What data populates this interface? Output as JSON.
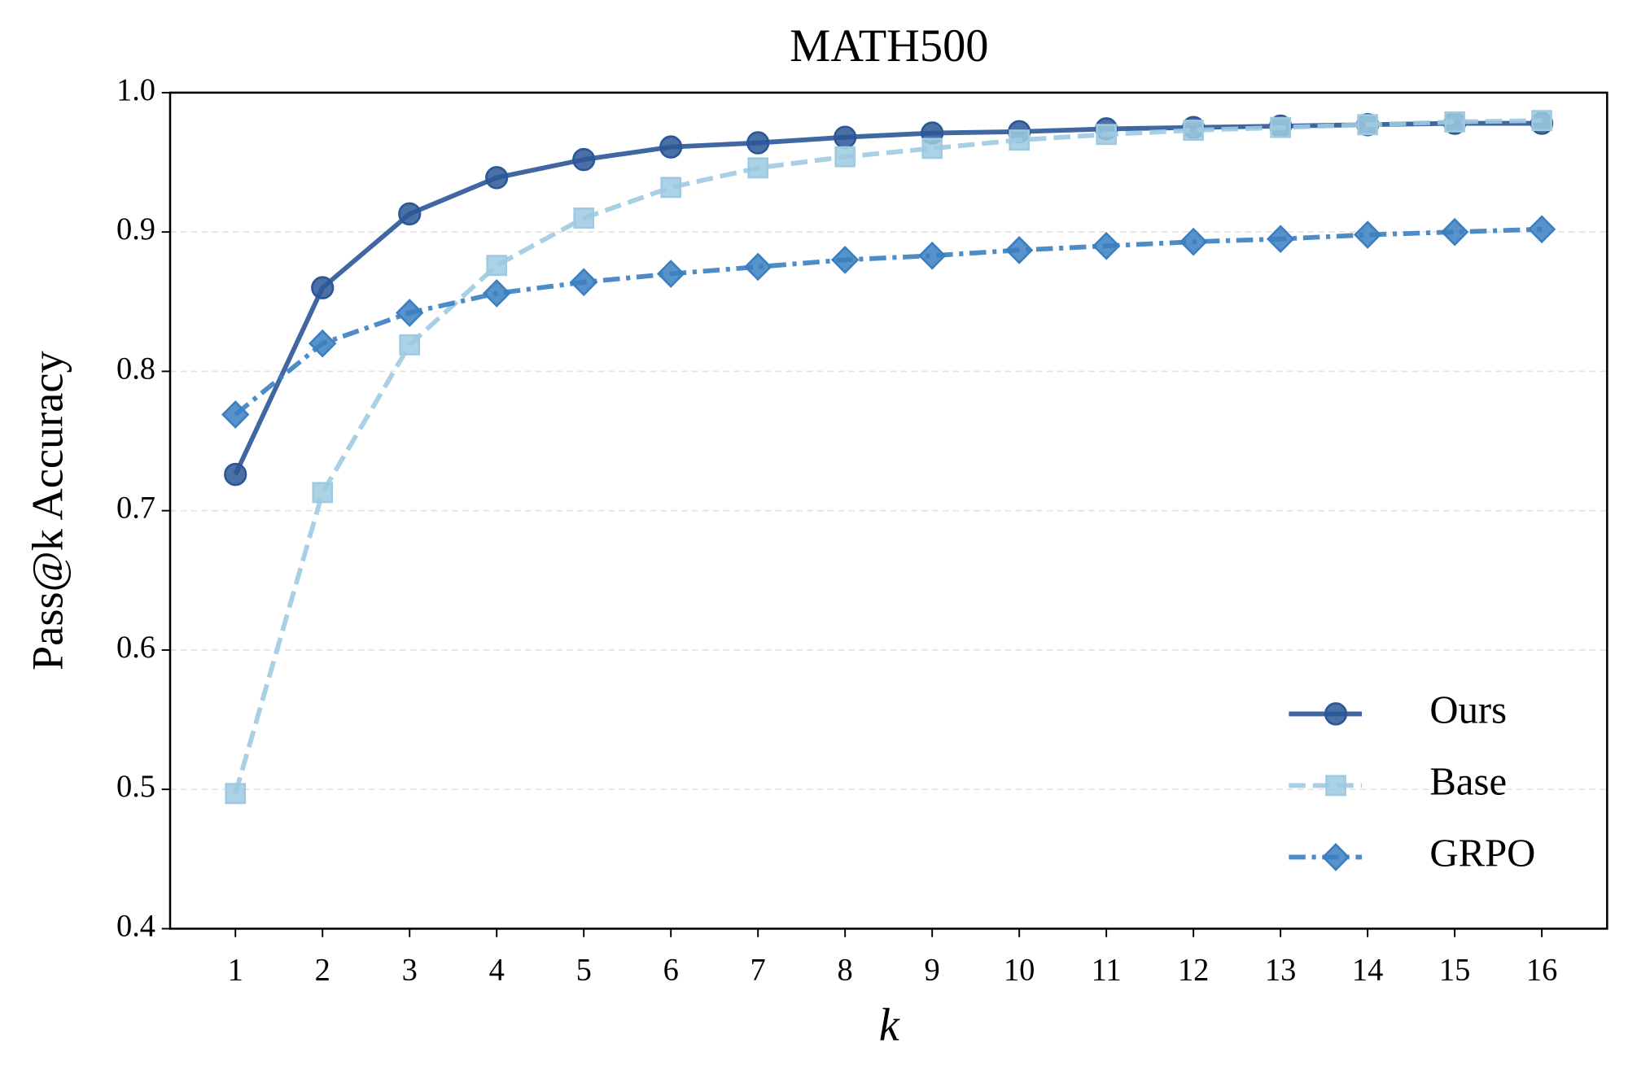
{
  "chart_data": {
    "type": "line",
    "title": "MATH500",
    "xlabel": "k",
    "ylabel": "Pass@k Accuracy",
    "x": [
      1,
      2,
      3,
      4,
      5,
      6,
      7,
      8,
      9,
      10,
      11,
      12,
      13,
      14,
      15,
      16
    ],
    "series": [
      {
        "name": "Ours",
        "color": "#2b5797",
        "dash": "solid",
        "marker": "circle",
        "values": [
          0.726,
          0.86,
          0.913,
          0.939,
          0.952,
          0.961,
          0.964,
          0.968,
          0.971,
          0.972,
          0.974,
          0.975,
          0.976,
          0.977,
          0.978,
          0.978
        ]
      },
      {
        "name": "Base",
        "color": "#9ecae1",
        "dash": "dashed",
        "marker": "square",
        "values": [
          0.497,
          0.713,
          0.819,
          0.876,
          0.91,
          0.932,
          0.946,
          0.954,
          0.96,
          0.966,
          0.97,
          0.973,
          0.975,
          0.977,
          0.979,
          0.98
        ]
      },
      {
        "name": "GRPO",
        "color": "#3a7fc1",
        "dash": "dashdot",
        "marker": "diamond",
        "values": [
          0.769,
          0.82,
          0.842,
          0.856,
          0.864,
          0.87,
          0.875,
          0.88,
          0.883,
          0.887,
          0.89,
          0.893,
          0.895,
          0.898,
          0.9,
          0.902
        ]
      }
    ],
    "xlim": [
      0.25,
      16.75
    ],
    "xticks": [
      1,
      2,
      3,
      4,
      5,
      6,
      7,
      8,
      9,
      10,
      11,
      12,
      13,
      14,
      15,
      16
    ],
    "ylim": [
      0.4,
      1.0
    ],
    "yticks": [
      0.4,
      0.5,
      0.6,
      0.7,
      0.8,
      0.9,
      {
        "value": 1.0,
        "label": "1.0"
      }
    ],
    "grid": true,
    "legend": "lower right"
  }
}
